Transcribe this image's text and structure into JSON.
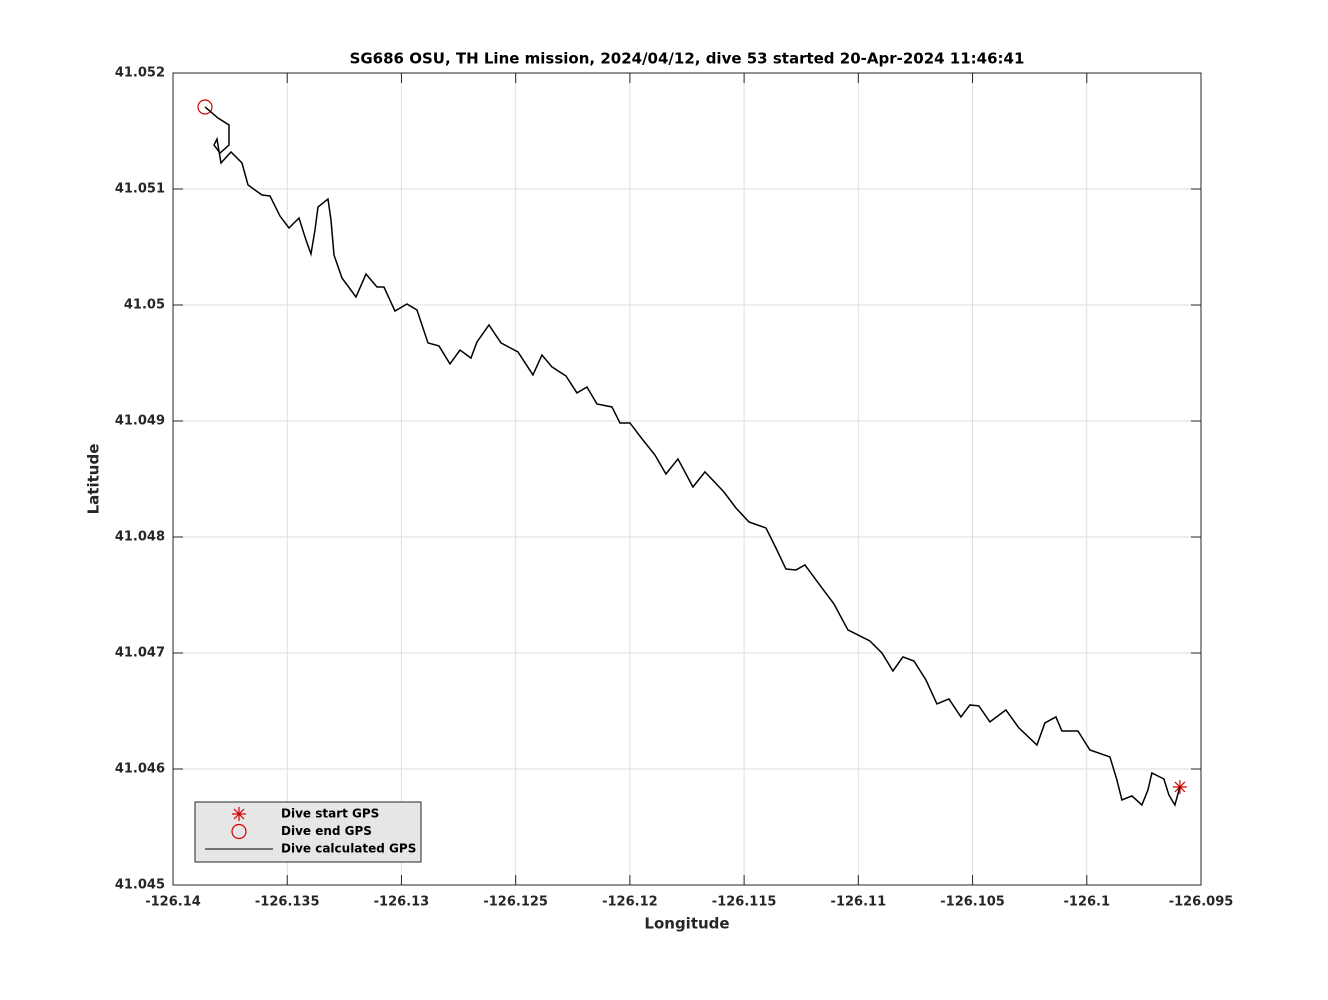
{
  "chart_data": {
    "type": "line",
    "title": "SG686 OSU, TH Line mission, 2024/04/12, dive 53 started 20-Apr-2024 11:46:41",
    "x_label": "Longitude",
    "y_label": "Latitude",
    "xlim": [
      -126.14,
      -126.095
    ],
    "ylim": [
      41.045,
      41.052
    ],
    "xticks": [
      -126.14,
      -126.135,
      -126.13,
      -126.125,
      -126.12,
      -126.115,
      -126.11,
      -126.105,
      -126.1,
      -126.095
    ],
    "yticks": [
      41.045,
      41.046,
      41.047,
      41.048,
      41.049,
      41.05,
      41.051,
      41.052
    ],
    "grid": true,
    "legend": "lower left",
    "series": [
      {
        "name": "Dive start GPS",
        "color": "#d40000",
        "marker": "asterisk",
        "x": [
          -126.095924
        ],
        "values": [
          41.045845
        ]
      },
      {
        "name": "Dive end GPS",
        "color": "#d40000",
        "marker": "circle",
        "x": [
          -126.138599
        ],
        "values": [
          41.051707
        ]
      },
      {
        "name": "Dive calculated GPS",
        "color": "#000000",
        "marker": "none",
        "x": [
          -126.138599,
          -126.13803,
          -126.137549,
          -126.137549,
          -126.137943,
          -126.138205,
          -126.138074,
          -126.137899,
          -126.137461,
          -126.13698,
          -126.136717,
          -126.136104,
          -126.135754,
          -126.135317,
          -126.134923,
          -126.134485,
          -126.134179,
          -126.13396,
          -126.133785,
          -126.133653,
          -126.133216,
          -126.133084,
          -126.132953,
          -126.132603,
          -126.13199,
          -126.131552,
          -126.131071,
          -126.130765,
          -126.130283,
          -126.129758,
          -126.12932,
          -126.128839,
          -126.128357,
          -126.127876,
          -126.127438,
          -126.126957,
          -126.126694,
          -126.126169,
          -126.125643,
          -126.124899,
          -126.124243,
          -126.123849,
          -126.123411,
          -126.122798,
          -126.122317,
          -126.121879,
          -126.121442,
          -126.120785,
          -126.120435,
          -126.119997,
          -126.119428,
          -126.118903,
          -126.118421,
          -126.117896,
          -126.11724,
          -126.116714,
          -126.115883,
          -126.115357,
          -126.114788,
          -126.114044,
          -126.113607,
          -126.113169,
          -126.112731,
          -126.112337,
          -126.111593,
          -126.111068,
          -126.110455,
          -126.109493,
          -126.108967,
          -126.108486,
          -126.108048,
          -126.107566,
          -126.107041,
          -126.10656,
          -126.106034,
          -126.105509,
          -126.105115,
          -126.104721,
          -126.10424,
          -126.10354,
          -126.102971,
          -126.102183,
          -126.101833,
          -126.101351,
          -126.101089,
          -126.100388,
          -126.099863,
          -126.098988,
          -126.098681,
          -126.098462,
          -126.098025,
          -126.097587,
          -126.097324,
          -126.09715,
          -126.096624,
          -126.096405,
          -126.096143,
          -126.095924
        ],
        "values": [
          41.051707,
          41.051612,
          41.051552,
          41.051379,
          41.05131,
          41.051379,
          41.051431,
          41.051224,
          41.051319,
          41.051224,
          41.051035,
          41.050948,
          41.05094,
          41.050767,
          41.050664,
          41.05075,
          41.05056,
          41.05044,
          41.050647,
          41.050845,
          41.050914,
          41.050733,
          41.050431,
          41.050233,
          41.050069,
          41.050267,
          41.050155,
          41.050155,
          41.049948,
          41.050009,
          41.049957,
          41.049673,
          41.049647,
          41.049492,
          41.049612,
          41.049543,
          41.049681,
          41.049828,
          41.049673,
          41.049595,
          41.049397,
          41.049569,
          41.049466,
          41.049388,
          41.049242,
          41.049293,
          41.049147,
          41.049121,
          41.048983,
          41.048983,
          41.048836,
          41.048707,
          41.048543,
          41.048673,
          41.048431,
          41.048561,
          41.048388,
          41.04825,
          41.04813,
          41.048078,
          41.047905,
          41.047724,
          41.047716,
          41.047759,
          41.047561,
          41.047423,
          41.047199,
          41.047104,
          41.047,
          41.046845,
          41.046966,
          41.046931,
          41.046768,
          41.046561,
          41.046604,
          41.046449,
          41.046552,
          41.046544,
          41.046406,
          41.046509,
          41.046354,
          41.046207,
          41.046397,
          41.046449,
          41.046328,
          41.046328,
          41.046164,
          41.046104,
          41.045906,
          41.045733,
          41.045768,
          41.04569,
          41.045819,
          41.045966,
          41.045914,
          41.045776,
          41.04569,
          41.045845
        ]
      }
    ]
  }
}
